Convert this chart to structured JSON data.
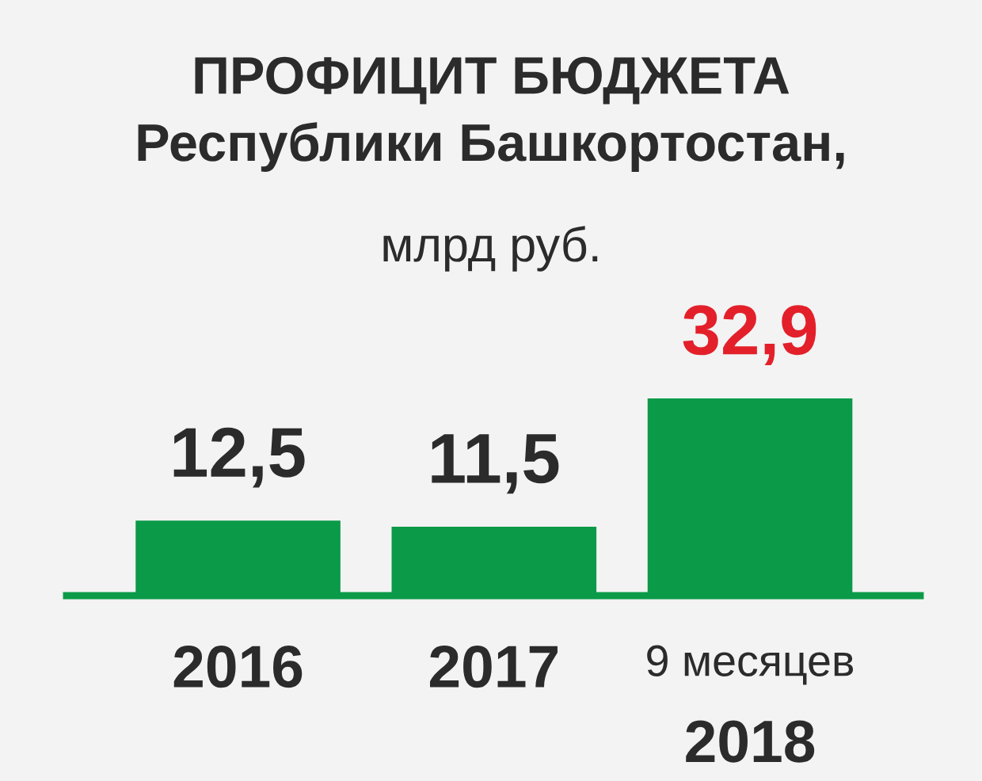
{
  "chart_data": {
    "type": "bar",
    "title": "ПРОФИЦИТ БЮДЖЕТА\nРеспублики Башкортостан,",
    "subtitle": "млрд руб.",
    "categories": [
      "2016",
      "2017",
      "9 месяцев\n2018"
    ],
    "values": [
      12.5,
      11.5,
      32.9
    ],
    "color": "#0a9a48",
    "value_labels": [
      "12,5",
      "11,5",
      "32,9"
    ]
  }
}
